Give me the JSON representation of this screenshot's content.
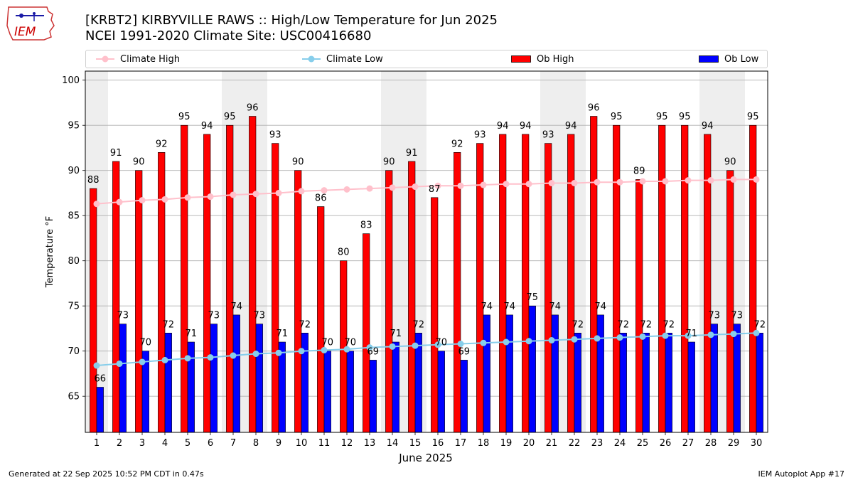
{
  "header": {
    "logo_text": "IEM",
    "title_line1": "[KRBT2] KIRBYVILLE RAWS :: High/Low Temperature for Jun 2025",
    "title_line2": "NCEI 1991-2020 Climate Site: USC00416680"
  },
  "footer": {
    "generated": "Generated at 22 Sep 2025 10:52 PM CDT in 0.47s",
    "app": "IEM Autoplot App #17"
  },
  "colors": {
    "ob_high": "#ff0000",
    "ob_low": "#0000ff",
    "climate_high": "#ffc0cb",
    "climate_low": "#87ceeb",
    "weekend_shade": "#eeeeee"
  },
  "chart_data": {
    "type": "bar",
    "xlabel": "June 2025",
    "ylabel": "Temperature °F",
    "ylim": [
      61,
      101
    ],
    "yticks": [
      65,
      70,
      75,
      80,
      85,
      90,
      95,
      100
    ],
    "grid": "horizontal",
    "legend_position": "top",
    "categories": [
      "1",
      "2",
      "3",
      "4",
      "5",
      "6",
      "7",
      "8",
      "9",
      "10",
      "11",
      "12",
      "13",
      "14",
      "15",
      "16",
      "17",
      "18",
      "19",
      "20",
      "21",
      "22",
      "23",
      "24",
      "25",
      "26",
      "27",
      "28",
      "29",
      "30"
    ],
    "shaded_days": [
      1,
      7,
      8,
      14,
      15,
      21,
      22,
      28,
      29
    ],
    "series": [
      {
        "name": "Climate High",
        "kind": "line",
        "values": [
          86.3,
          86.5,
          86.7,
          86.8,
          87.0,
          87.1,
          87.3,
          87.4,
          87.5,
          87.7,
          87.8,
          87.9,
          88.0,
          88.1,
          88.2,
          88.3,
          88.3,
          88.4,
          88.5,
          88.5,
          88.6,
          88.6,
          88.7,
          88.7,
          88.8,
          88.8,
          88.9,
          88.9,
          89.0,
          89.0
        ]
      },
      {
        "name": "Climate Low",
        "kind": "line",
        "values": [
          68.4,
          68.6,
          68.8,
          69.0,
          69.2,
          69.3,
          69.5,
          69.7,
          69.8,
          70.0,
          70.1,
          70.2,
          70.4,
          70.5,
          70.6,
          70.7,
          70.8,
          70.9,
          71.0,
          71.1,
          71.2,
          71.3,
          71.4,
          71.5,
          71.6,
          71.7,
          71.7,
          71.8,
          71.9,
          72.0
        ]
      },
      {
        "name": "Ob High",
        "kind": "bar",
        "values": [
          88,
          91,
          90,
          92,
          95,
          94,
          95,
          96,
          93,
          90,
          86,
          80,
          83,
          90,
          91,
          87,
          92,
          93,
          94,
          94,
          93,
          94,
          96,
          95,
          89,
          95,
          95,
          94,
          90,
          95
        ]
      },
      {
        "name": "Ob Low",
        "kind": "bar",
        "values": [
          66,
          73,
          70,
          72,
          71,
          73,
          74,
          73,
          71,
          72,
          70,
          70,
          69,
          71,
          72,
          70,
          69,
          74,
          74,
          75,
          74,
          72,
          74,
          72,
          72,
          72,
          71,
          73,
          73,
          72
        ]
      }
    ]
  }
}
